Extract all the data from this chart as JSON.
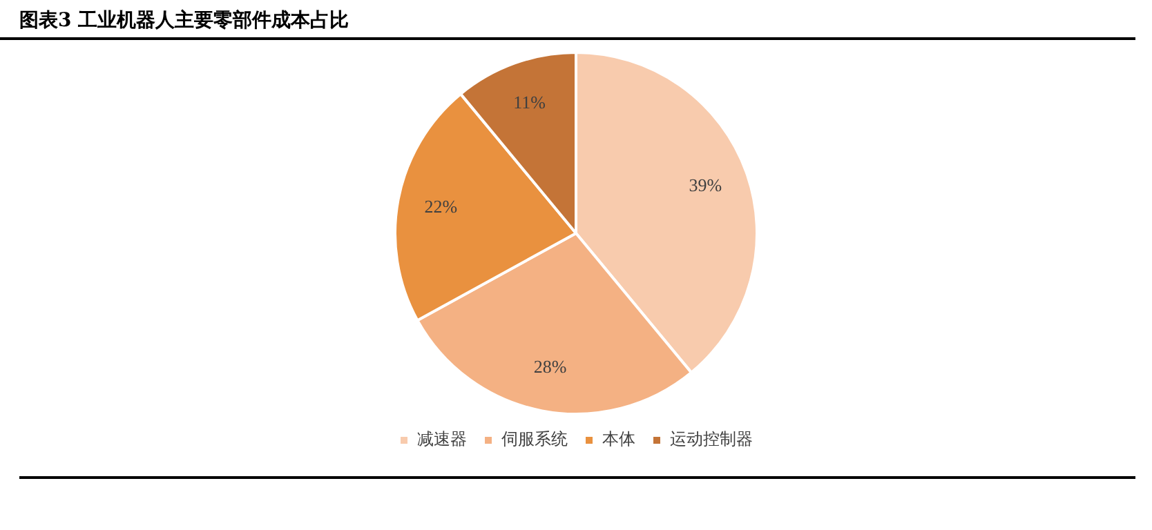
{
  "chart_data": {
    "type": "pie",
    "title": "图表3 工业机器人主要零部件成本占比",
    "categories": [
      "减速器",
      "伺服系统",
      "本体",
      "运动控制器"
    ],
    "values": [
      39,
      28,
      22,
      11
    ],
    "value_labels": [
      "39%",
      "28%",
      "22%",
      "11%"
    ],
    "colors": [
      "#f8cbad",
      "#f4b183",
      "#e9913f",
      "#c47437"
    ],
    "legend": "bottom"
  }
}
